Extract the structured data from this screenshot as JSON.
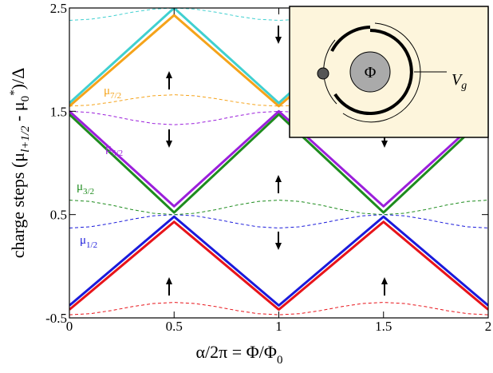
{
  "chart_data": {
    "type": "line",
    "xlabel": {
      "text": "α/2π = Φ/Φ",
      "sub": "0"
    },
    "ylabel": [
      "charge steps (μ",
      "l+1/2",
      " - μ",
      "0",
      "*",
      ")/Δ"
    ],
    "x": [
      0,
      0.1,
      0.2,
      0.3,
      0.4,
      0.5,
      0.6,
      0.7,
      0.8,
      0.9,
      1,
      1.1,
      1.2,
      1.3,
      1.4,
      1.5,
      1.6,
      1.7,
      1.8,
      1.9,
      2
    ],
    "xlim": [
      0,
      2
    ],
    "xticks": [
      0,
      0.5,
      1,
      1.5,
      2
    ],
    "ylim": [
      -0.5,
      2.5
    ],
    "yticks": [
      -0.5,
      0.5,
      1.5,
      2.5
    ],
    "series": [
      {
        "color": "#e8141a",
        "dashed": true,
        "values": [
          -0.47,
          -0.459,
          -0.429,
          -0.391,
          -0.361,
          -0.35,
          -0.361,
          -0.391,
          -0.429,
          -0.459,
          -0.47,
          -0.459,
          -0.429,
          -0.391,
          -0.361,
          -0.35,
          -0.361,
          -0.391,
          -0.429,
          -0.459,
          -0.47
        ]
      },
      {
        "color": "#1a1adb",
        "dashed": true,
        "values": [
          0.37,
          0.382,
          0.415,
          0.455,
          0.488,
          0.5,
          0.488,
          0.455,
          0.415,
          0.382,
          0.37,
          0.382,
          0.415,
          0.455,
          0.488,
          0.5,
          0.488,
          0.455,
          0.415,
          0.382,
          0.37
        ]
      },
      {
        "color": "#1e8c1e",
        "dashed": true,
        "values": [
          0.64,
          0.627,
          0.592,
          0.548,
          0.513,
          0.5,
          0.513,
          0.548,
          0.592,
          0.627,
          0.64,
          0.627,
          0.592,
          0.548,
          0.513,
          0.5,
          0.513,
          0.548,
          0.592,
          0.627,
          0.64
        ]
      },
      {
        "color": "#9b1fdb",
        "dashed": true,
        "values": [
          1.5,
          1.488,
          1.455,
          1.415,
          1.382,
          1.37,
          1.382,
          1.415,
          1.455,
          1.488,
          1.5,
          1.488,
          1.455,
          1.415,
          1.382,
          1.37,
          1.382,
          1.415,
          1.455,
          1.488,
          1.5
        ]
      },
      {
        "color": "#f5a31a",
        "dashed": true,
        "values": [
          1.55,
          1.56,
          1.588,
          1.622,
          1.65,
          1.66,
          1.65,
          1.622,
          1.588,
          1.56,
          1.55,
          1.56,
          1.588,
          1.622,
          1.65,
          1.66,
          1.65,
          1.622,
          1.588,
          1.56,
          1.55
        ]
      },
      {
        "color": "#40d0d0",
        "dashed": true,
        "values": [
          2.38,
          2.391,
          2.421,
          2.459,
          2.489,
          2.5,
          2.489,
          2.459,
          2.421,
          2.391,
          2.38,
          2.391,
          2.421,
          2.459,
          2.489,
          2.5,
          2.489,
          2.459,
          2.421,
          2.391,
          2.38
        ]
      },
      {
        "color": "#e8141a",
        "values": [
          -0.42,
          -0.25,
          -0.08,
          0.09,
          0.26,
          0.43,
          0.26,
          0.09,
          -0.08,
          -0.25,
          -0.42,
          -0.25,
          -0.08,
          0.09,
          0.26,
          0.43,
          0.26,
          0.09,
          -0.08,
          -0.25,
          -0.42
        ]
      },
      {
        "color": "#1a1adb",
        "label": "μ",
        "label_sub": "1/2",
        "values": [
          -0.38,
          -0.208,
          -0.036,
          0.136,
          0.308,
          0.48,
          0.308,
          0.136,
          -0.036,
          -0.208,
          -0.38,
          -0.208,
          -0.036,
          0.136,
          0.308,
          0.48,
          0.308,
          0.136,
          -0.036,
          -0.208,
          -0.38
        ]
      },
      {
        "color": "#1e8c1e",
        "label": "μ",
        "label_sub": "3/2",
        "values": [
          1.47,
          1.28,
          1.09,
          0.9,
          0.71,
          0.52,
          0.71,
          0.9,
          1.09,
          1.28,
          1.47,
          1.28,
          1.09,
          0.9,
          0.71,
          0.52,
          0.71,
          0.9,
          1.09,
          1.28,
          1.47
        ]
      },
      {
        "color": "#9b1fdb",
        "label": "μ",
        "label_sub": "5/2",
        "values": [
          1.5,
          1.316,
          1.132,
          0.948,
          0.764,
          0.58,
          0.764,
          0.948,
          1.132,
          1.316,
          1.5,
          1.316,
          1.132,
          0.948,
          0.764,
          0.58,
          0.764,
          0.948,
          1.132,
          1.316,
          1.5
        ]
      },
      {
        "color": "#f5a31a",
        "label": "μ",
        "label_sub": "7/2",
        "values": [
          1.55,
          1.726,
          1.902,
          2.078,
          2.254,
          2.43,
          2.254,
          2.078,
          1.902,
          1.726,
          1.55,
          1.726,
          1.902,
          2.078,
          2.254,
          2.43,
          2.254,
          2.078,
          1.902,
          1.726,
          1.55
        ]
      },
      {
        "color": "#40d0d0",
        "values": [
          1.58,
          1.764,
          1.948,
          2.132,
          2.316,
          2.5,
          2.316,
          2.132,
          1.948,
          1.764,
          1.58,
          1.764,
          1.948,
          2.132,
          2.316,
          2.5,
          2.316,
          2.132,
          1.948,
          1.764,
          1.58
        ]
      }
    ],
    "inset": {
      "center_label": "Φ",
      "gate_label": "V",
      "gate_sub": "g"
    }
  }
}
